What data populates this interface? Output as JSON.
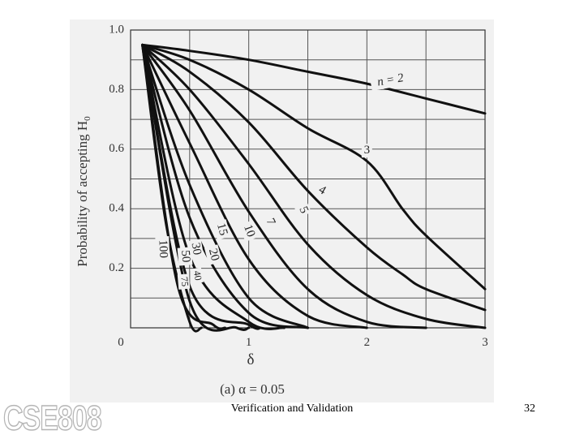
{
  "chart_data": {
    "type": "line",
    "title": "",
    "caption": "(a) α = 0.05",
    "xlabel": "δ",
    "ylabel": "Probability of accepting H",
    "ylabel_subscript": "0",
    "xlim": [
      0,
      3
    ],
    "ylim": [
      0,
      1.0
    ],
    "x_ticks": [
      "0",
      "1",
      "2",
      "3"
    ],
    "y_ticks": [
      "1.0",
      "0.8",
      "0.6",
      "0.4",
      "0.2"
    ],
    "grid": true,
    "series": [
      {
        "name": "n = 2",
        "x": [
          0.1,
          0.5,
          1.0,
          1.5,
          2.0,
          2.5,
          3.0
        ],
        "y": [
          0.95,
          0.93,
          0.9,
          0.86,
          0.82,
          0.77,
          0.72
        ]
      },
      {
        "name": "3",
        "x": [
          0.1,
          0.5,
          1.0,
          1.5,
          2.0,
          2.3,
          2.5,
          3.0
        ],
        "y": [
          0.95,
          0.9,
          0.8,
          0.67,
          0.56,
          0.4,
          0.31,
          0.13
        ]
      },
      {
        "name": "4",
        "x": [
          0.1,
          0.5,
          1.0,
          1.5,
          2.0,
          2.3,
          2.5,
          3.0
        ],
        "y": [
          0.95,
          0.86,
          0.69,
          0.46,
          0.27,
          0.18,
          0.13,
          0.06
        ]
      },
      {
        "name": "5",
        "x": [
          0.1,
          0.5,
          1.0,
          1.5,
          2.0,
          2.5,
          3.0
        ],
        "y": [
          0.95,
          0.8,
          0.55,
          0.28,
          0.11,
          0.03,
          0.0
        ]
      },
      {
        "name": "7",
        "x": [
          0.1,
          0.5,
          1.0,
          1.5,
          2.0,
          2.5
        ],
        "y": [
          0.95,
          0.73,
          0.39,
          0.13,
          0.02,
          0.0
        ]
      },
      {
        "name": "10",
        "x": [
          0.1,
          0.5,
          1.0,
          1.5,
          2.0
        ],
        "y": [
          0.95,
          0.62,
          0.23,
          0.04,
          0.0
        ]
      },
      {
        "name": "15",
        "x": [
          0.1,
          0.5,
          1.0,
          1.5
        ],
        "y": [
          0.95,
          0.48,
          0.1,
          0.0
        ]
      },
      {
        "name": "20",
        "x": [
          0.1,
          0.5,
          1.0,
          1.5
        ],
        "y": [
          0.95,
          0.37,
          0.05,
          0.0
        ]
      },
      {
        "name": "30",
        "x": [
          0.1,
          0.5,
          1.0,
          1.3
        ],
        "y": [
          0.95,
          0.24,
          0.02,
          0.0
        ]
      },
      {
        "name": "40",
        "x": [
          0.1,
          0.5,
          1.0,
          1.1
        ],
        "y": [
          0.95,
          0.14,
          0.01,
          0.0
        ]
      },
      {
        "name": "50",
        "x": [
          0.1,
          0.5,
          0.9,
          1.0
        ],
        "y": [
          0.95,
          0.09,
          0.0,
          0.0
        ]
      },
      {
        "name": "75",
        "x": [
          0.1,
          0.4,
          0.7,
          0.8
        ],
        "y": [
          0.95,
          0.14,
          0.01,
          0.0
        ]
      },
      {
        "name": "100",
        "x": [
          0.1,
          0.3,
          0.5,
          0.6
        ],
        "y": [
          0.95,
          0.35,
          0.02,
          0.0
        ]
      }
    ],
    "colors": {
      "line": "#111111",
      "grid": "#555555",
      "background": "#f1f1f1"
    }
  },
  "footer": {
    "title": "Verification and Validation",
    "page": "32",
    "logo_text": "CSE808"
  }
}
